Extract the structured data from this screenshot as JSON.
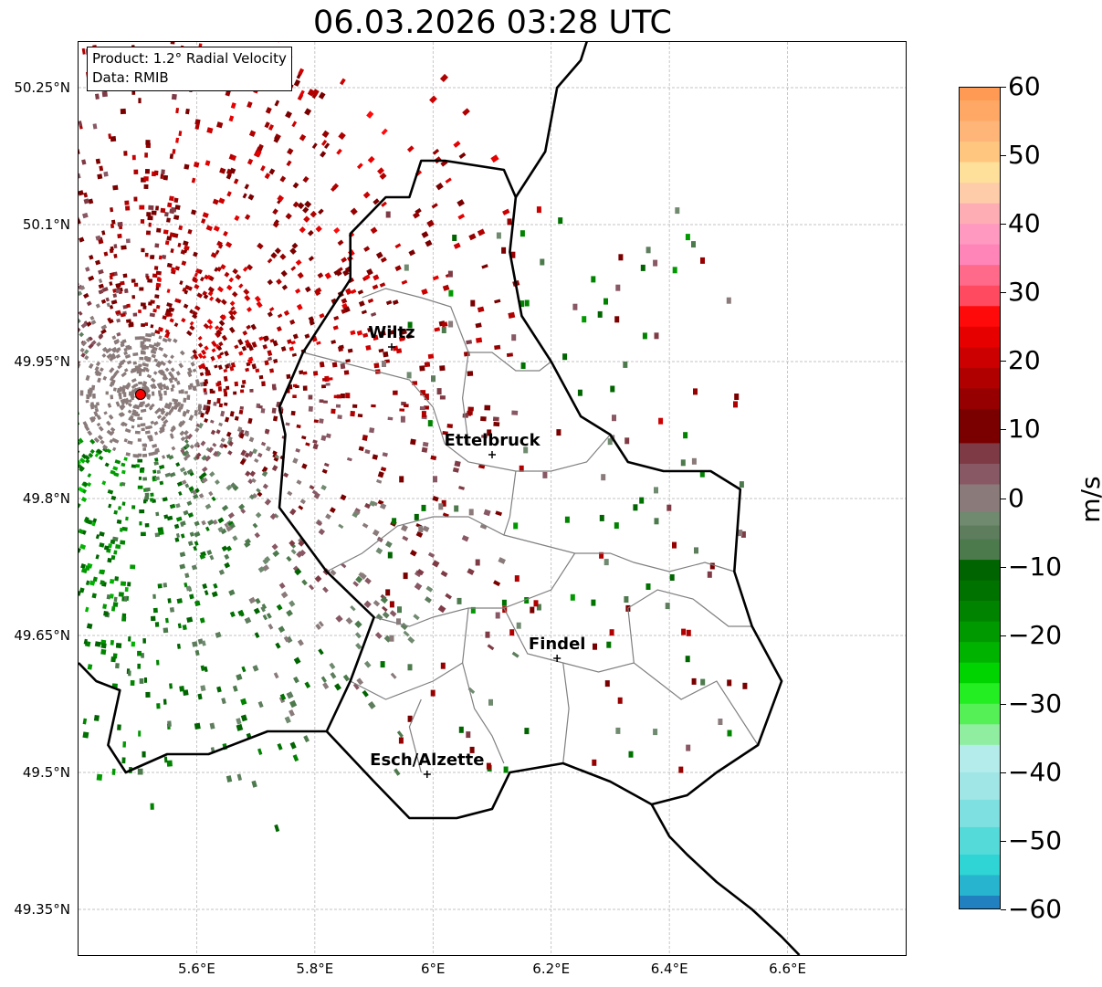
{
  "title": "06.03.2026 03:28 UTC",
  "info": {
    "product": "Product: 1.2° Radial Velocity",
    "source": "Data: RMIB"
  },
  "extent": {
    "lon": [
      5.4,
      6.8
    ],
    "lat": [
      49.3,
      50.3
    ]
  },
  "x_ticks": [
    {
      "lon": 5.6,
      "label": "5.6°E"
    },
    {
      "lon": 5.8,
      "label": "5.8°E"
    },
    {
      "lon": 6.0,
      "label": "6°E"
    },
    {
      "lon": 6.2,
      "label": "6.2°E"
    },
    {
      "lon": 6.4,
      "label": "6.4°E"
    },
    {
      "lon": 6.6,
      "label": "6.6°E"
    }
  ],
  "y_ticks": [
    {
      "lat": 50.25,
      "label": "50.25°N"
    },
    {
      "lat": 50.1,
      "label": "50.1°N"
    },
    {
      "lat": 49.95,
      "label": "49.95°N"
    },
    {
      "lat": 49.8,
      "label": "49.8°N"
    },
    {
      "lat": 49.65,
      "label": "49.65°N"
    },
    {
      "lat": 49.5,
      "label": "49.5°N"
    },
    {
      "lat": 49.35,
      "label": "49.35°N"
    }
  ],
  "radar_site": {
    "lon": 5.505,
    "lat": 49.914
  },
  "cities": [
    {
      "name": "Wiltz",
      "lon": 5.93,
      "lat": 49.966
    },
    {
      "name": "Ettelbruck",
      "lon": 6.1,
      "lat": 49.848
    },
    {
      "name": "Findel",
      "lon": 6.21,
      "lat": 49.625
    },
    {
      "name": "Esch/Alzette",
      "lon": 5.99,
      "lat": 49.498
    }
  ],
  "border_national": [
    [
      5.82,
      49.545
    ],
    [
      5.9,
      49.49
    ],
    [
      5.96,
      49.45
    ],
    [
      6.04,
      49.45
    ],
    [
      6.1,
      49.46
    ],
    [
      6.13,
      49.5
    ],
    [
      6.22,
      49.51
    ],
    [
      6.3,
      49.49
    ],
    [
      6.37,
      49.465
    ],
    [
      6.43,
      49.475
    ],
    [
      6.48,
      49.5
    ],
    [
      6.55,
      49.53
    ],
    [
      6.59,
      49.6
    ],
    [
      6.54,
      49.66
    ],
    [
      6.51,
      49.72
    ],
    [
      6.52,
      49.81
    ],
    [
      6.47,
      49.83
    ],
    [
      6.39,
      49.83
    ],
    [
      6.33,
      49.84
    ],
    [
      6.3,
      49.87
    ],
    [
      6.25,
      49.89
    ],
    [
      6.2,
      49.95
    ],
    [
      6.15,
      50.0
    ],
    [
      6.13,
      50.07
    ],
    [
      6.14,
      50.13
    ],
    [
      6.12,
      50.16
    ],
    [
      6.02,
      50.17
    ],
    [
      5.98,
      50.17
    ],
    [
      5.96,
      50.13
    ],
    [
      5.92,
      50.13
    ],
    [
      5.86,
      50.09
    ],
    [
      5.86,
      50.04
    ],
    [
      5.78,
      49.96
    ],
    [
      5.74,
      49.9
    ],
    [
      5.75,
      49.87
    ],
    [
      5.74,
      49.79
    ],
    [
      5.82,
      49.72
    ],
    [
      5.9,
      49.67
    ],
    [
      5.86,
      49.6
    ],
    [
      5.82,
      49.545
    ]
  ],
  "border_belgium_south": [
    [
      5.4,
      49.62
    ],
    [
      5.43,
      49.6
    ],
    [
      5.47,
      49.59
    ],
    [
      5.45,
      49.53
    ],
    [
      5.48,
      49.5
    ],
    [
      5.55,
      49.52
    ],
    [
      5.62,
      49.52
    ],
    [
      5.72,
      49.545
    ],
    [
      5.82,
      49.545
    ]
  ],
  "border_belgium_east": [
    [
      6.14,
      50.13
    ],
    [
      6.19,
      50.18
    ],
    [
      6.21,
      50.25
    ],
    [
      6.25,
      50.28
    ],
    [
      6.27,
      50.32
    ]
  ],
  "border_germany_south": [
    [
      6.37,
      49.465
    ],
    [
      6.4,
      49.43
    ],
    [
      6.43,
      49.41
    ],
    [
      6.48,
      49.38
    ],
    [
      6.54,
      49.35
    ],
    [
      6.59,
      49.32
    ],
    [
      6.62,
      49.3
    ]
  ],
  "cantons": [
    [
      [
        5.88,
        50.02
      ],
      [
        5.92,
        50.03
      ],
      [
        5.98,
        50.02
      ],
      [
        6.03,
        50.01
      ],
      [
        6.06,
        49.96
      ],
      [
        6.1,
        49.96
      ],
      [
        6.14,
        49.94
      ],
      [
        6.18,
        49.94
      ],
      [
        6.2,
        49.95
      ]
    ],
    [
      [
        5.78,
        49.96
      ],
      [
        5.84,
        49.95
      ],
      [
        5.9,
        49.94
      ],
      [
        5.96,
        49.93
      ],
      [
        6.0,
        49.9
      ],
      [
        6.02,
        49.86
      ],
      [
        6.06,
        49.84
      ],
      [
        6.14,
        49.83
      ],
      [
        6.2,
        49.83
      ],
      [
        6.26,
        49.84
      ],
      [
        6.3,
        49.87
      ]
    ],
    [
      [
        6.06,
        49.96
      ],
      [
        6.05,
        49.91
      ],
      [
        6.06,
        49.86
      ]
    ],
    [
      [
        5.82,
        49.72
      ],
      [
        5.88,
        49.74
      ],
      [
        5.94,
        49.77
      ],
      [
        6.0,
        49.78
      ],
      [
        6.06,
        49.78
      ],
      [
        6.12,
        49.76
      ],
      [
        6.18,
        49.75
      ],
      [
        6.24,
        49.74
      ],
      [
        6.3,
        49.74
      ],
      [
        6.34,
        49.73
      ],
      [
        6.4,
        49.72
      ],
      [
        6.46,
        49.73
      ],
      [
        6.51,
        49.72
      ]
    ],
    [
      [
        6.14,
        49.83
      ],
      [
        6.13,
        49.78
      ],
      [
        6.12,
        49.76
      ]
    ],
    [
      [
        6.24,
        49.74
      ],
      [
        6.2,
        49.7
      ],
      [
        6.12,
        49.68
      ],
      [
        6.06,
        49.68
      ],
      [
        6.0,
        49.67
      ],
      [
        5.96,
        49.66
      ],
      [
        5.9,
        49.67
      ]
    ],
    [
      [
        6.06,
        49.68
      ],
      [
        6.05,
        49.62
      ],
      [
        6.0,
        49.6
      ],
      [
        5.92,
        49.58
      ],
      [
        5.86,
        49.6
      ]
    ],
    [
      [
        6.12,
        49.68
      ],
      [
        6.16,
        49.63
      ],
      [
        6.22,
        49.62
      ],
      [
        6.28,
        49.61
      ],
      [
        6.34,
        49.62
      ],
      [
        6.38,
        49.6
      ],
      [
        6.42,
        49.58
      ],
      [
        6.48,
        49.6
      ],
      [
        6.55,
        49.53
      ]
    ],
    [
      [
        6.22,
        49.62
      ],
      [
        6.23,
        49.57
      ],
      [
        6.22,
        49.51
      ]
    ],
    [
      [
        6.05,
        49.62
      ],
      [
        6.07,
        49.57
      ],
      [
        6.1,
        49.54
      ],
      [
        6.12,
        49.51
      ]
    ],
    [
      [
        6.34,
        49.62
      ],
      [
        6.33,
        49.68
      ],
      [
        6.38,
        49.7
      ],
      [
        6.44,
        49.69
      ],
      [
        6.5,
        49.66
      ],
      [
        6.54,
        49.66
      ]
    ],
    [
      [
        5.98,
        49.58
      ],
      [
        5.96,
        49.55
      ],
      [
        5.98,
        49.5
      ]
    ]
  ],
  "colorbar": {
    "unit": "m/s",
    "min": -60,
    "max": 60,
    "ticks": [
      60,
      50,
      40,
      30,
      20,
      10,
      0,
      -10,
      -20,
      -30,
      -40,
      -50,
      -60
    ],
    "tick_labels": [
      "60",
      "50",
      "40",
      "30",
      "20",
      "10",
      "0",
      "−10",
      "−20",
      "−30",
      "−40",
      "−50",
      "−60"
    ],
    "bands": [
      {
        "from": 58,
        "to": 60,
        "color": "#ff9a55"
      },
      {
        "from": 55,
        "to": 58,
        "color": "#ffa866"
      },
      {
        "from": 52,
        "to": 55,
        "color": "#ffb577"
      },
      {
        "from": 49,
        "to": 52,
        "color": "#ffc680"
      },
      {
        "from": 46,
        "to": 49,
        "color": "#ffe09a"
      },
      {
        "from": 43,
        "to": 46,
        "color": "#ffccaa"
      },
      {
        "from": 40,
        "to": 43,
        "color": "#ffadb4"
      },
      {
        "from": 37,
        "to": 40,
        "color": "#ff99c0"
      },
      {
        "from": 34,
        "to": 37,
        "color": "#ff85b8"
      },
      {
        "from": 31,
        "to": 34,
        "color": "#ff6a8a"
      },
      {
        "from": 28,
        "to": 31,
        "color": "#ff4a60"
      },
      {
        "from": 25,
        "to": 28,
        "color": "#ff0a0a"
      },
      {
        "from": 22,
        "to": 25,
        "color": "#e60000"
      },
      {
        "from": 19,
        "to": 22,
        "color": "#cc0000"
      },
      {
        "from": 16,
        "to": 19,
        "color": "#b00000"
      },
      {
        "from": 13,
        "to": 16,
        "color": "#960000"
      },
      {
        "from": 8,
        "to": 13,
        "color": "#7a0000"
      },
      {
        "from": 5,
        "to": 8,
        "color": "#7f3b45"
      },
      {
        "from": 2,
        "to": 5,
        "color": "#885864"
      },
      {
        "from": -2,
        "to": 2,
        "color": "#8a7a7a"
      },
      {
        "from": -4,
        "to": -2,
        "color": "#6f8a6f"
      },
      {
        "from": -6,
        "to": -4,
        "color": "#5d7d5d"
      },
      {
        "from": -9,
        "to": -6,
        "color": "#4d7a4d"
      },
      {
        "from": -12,
        "to": -9,
        "color": "#006400"
      },
      {
        "from": -15,
        "to": -12,
        "color": "#007200"
      },
      {
        "from": -18,
        "to": -15,
        "color": "#008400"
      },
      {
        "from": -21,
        "to": -18,
        "color": "#009900"
      },
      {
        "from": -24,
        "to": -21,
        "color": "#00b300"
      },
      {
        "from": -27,
        "to": -24,
        "color": "#00d400"
      },
      {
        "from": -30,
        "to": -27,
        "color": "#22ee22"
      },
      {
        "from": -33,
        "to": -30,
        "color": "#55f055"
      },
      {
        "from": -36,
        "to": -33,
        "color": "#90eea0"
      },
      {
        "from": -40,
        "to": -36,
        "color": "#b4ecec"
      },
      {
        "from": -44,
        "to": -40,
        "color": "#a0e6e6"
      },
      {
        "from": -48,
        "to": -44,
        "color": "#7ee0e0"
      },
      {
        "from": -52,
        "to": -48,
        "color": "#55dada"
      },
      {
        "from": -55,
        "to": -52,
        "color": "#2fd4d4"
      },
      {
        "from": -58,
        "to": -55,
        "color": "#27b4cf"
      },
      {
        "from": -60,
        "to": -58,
        "color": "#2080c0"
      }
    ]
  },
  "colors": {
    "border_national": "#000000",
    "border_canton": "#808080",
    "grid": "#b0b0b0",
    "radar_marker": "#ff0000"
  }
}
